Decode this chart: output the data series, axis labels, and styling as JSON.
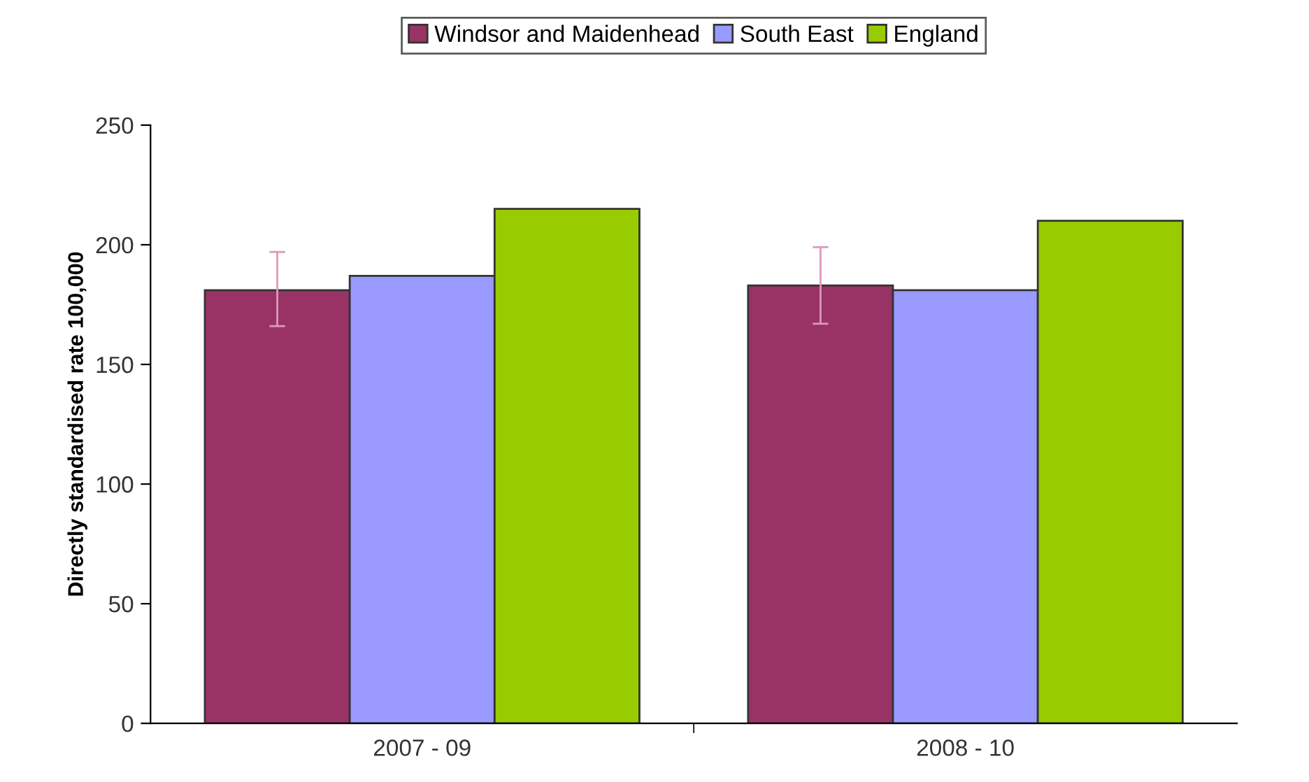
{
  "chart_data": {
    "type": "bar",
    "ylabel": "Directly standardised rate 100,000",
    "categories": [
      "2007 - 09",
      "2008 - 10"
    ],
    "series": [
      {
        "name": "Windsor and Maidenhead",
        "color": "#993366",
        "values": [
          181,
          183
        ],
        "errors": [
          [
            166,
            197
          ],
          [
            167,
            199
          ]
        ]
      },
      {
        "name": "South East",
        "color": "#9999ff",
        "values": [
          187,
          181
        ]
      },
      {
        "name": "England",
        "color": "#99cc00",
        "values": [
          215,
          210
        ]
      }
    ],
    "ylim": [
      0,
      250
    ],
    "yticks": [
      0,
      50,
      100,
      150,
      200,
      250
    ],
    "grid": false,
    "legend": "top"
  }
}
